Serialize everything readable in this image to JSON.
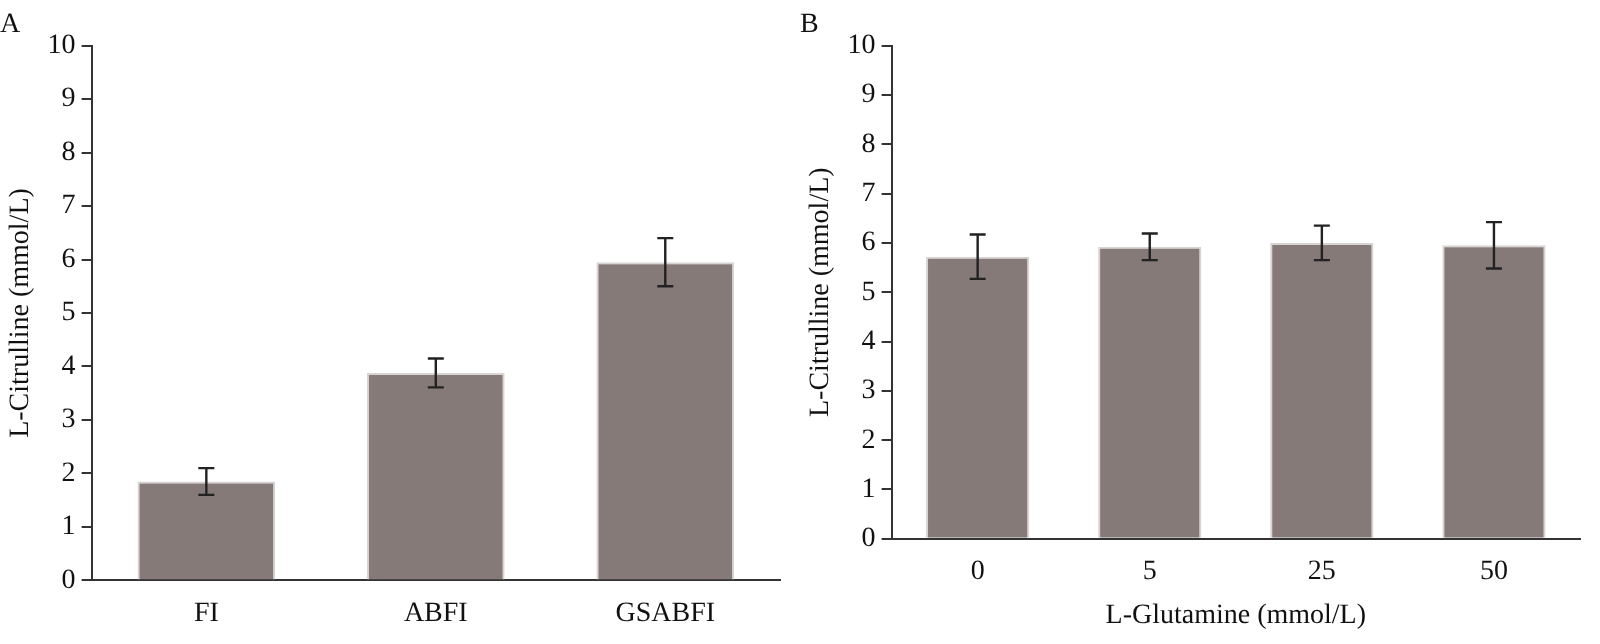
{
  "chart_data": [
    {
      "type": "bar",
      "title": "A",
      "ylabel": "L-Citrulline (mmol/L)",
      "categories": [
        "FI",
        "ABFI",
        "GSABFI"
      ],
      "values": [
        1.85,
        3.88,
        5.95
      ],
      "errors": [
        0.25,
        0.27,
        0.45
      ],
      "color": "#857a78",
      "ylim": [
        0,
        10
      ],
      "yticks": [
        0,
        1,
        2,
        3,
        4,
        5,
        6,
        7,
        8,
        9,
        10
      ],
      "grid": false,
      "legend": false
    },
    {
      "type": "bar",
      "title": "B",
      "xlabel": "L-Glutamine (mmol/L)",
      "ylabel": "L-Citrulline (mmol/L)",
      "categories": [
        "0",
        "5",
        "25",
        "50"
      ],
      "values": [
        5.72,
        5.92,
        6.0,
        5.95
      ],
      "errors": [
        0.45,
        0.27,
        0.35,
        0.47
      ],
      "color": "#857a78",
      "ylim": [
        0,
        10
      ],
      "yticks": [
        0,
        1,
        2,
        3,
        4,
        5,
        6,
        7,
        8,
        9,
        10
      ],
      "grid": false,
      "legend": false
    }
  ]
}
